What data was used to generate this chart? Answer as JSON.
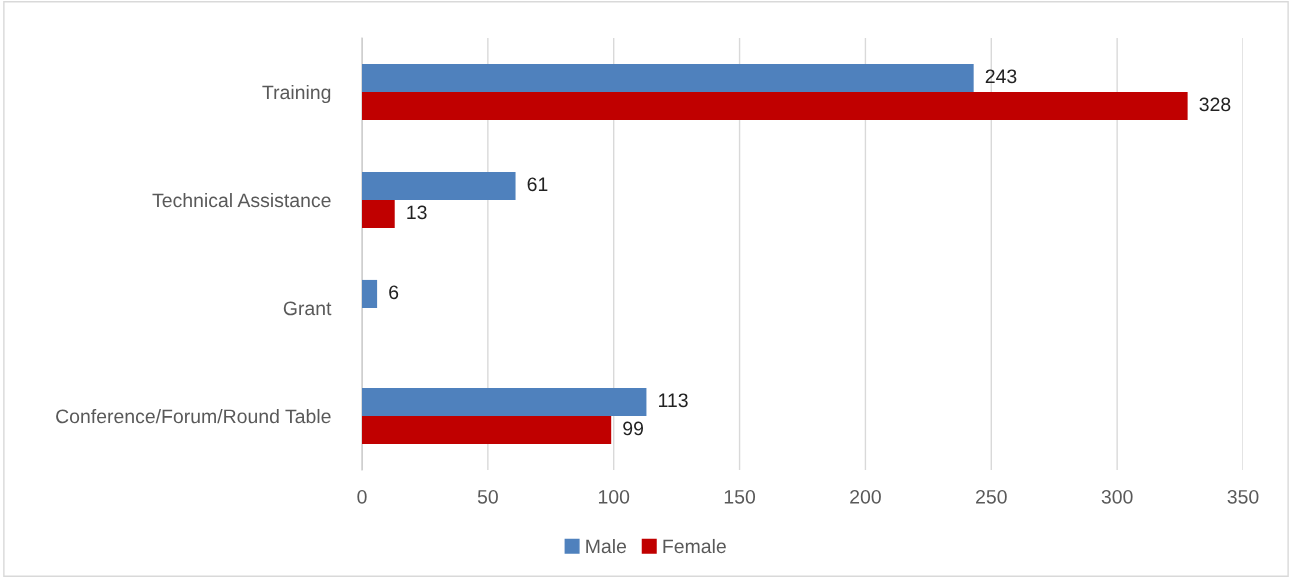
{
  "chart_data": {
    "type": "bar",
    "orientation": "horizontal",
    "categories": [
      "Training",
      "Technical Assistance",
      "Grant",
      "Conference/Forum/Round Table"
    ],
    "series": [
      {
        "name": "Male",
        "color": "#4f81bd",
        "values": [
          243,
          61,
          6,
          113
        ]
      },
      {
        "name": "Female",
        "color": "#c00000",
        "values": [
          328,
          13,
          null,
          99
        ]
      }
    ],
    "xlim": [
      0,
      350
    ],
    "xticks": [
      0,
      50,
      100,
      150,
      200,
      250,
      300,
      350
    ],
    "grid": "x",
    "legend": "bottom",
    "data_labels": true
  }
}
